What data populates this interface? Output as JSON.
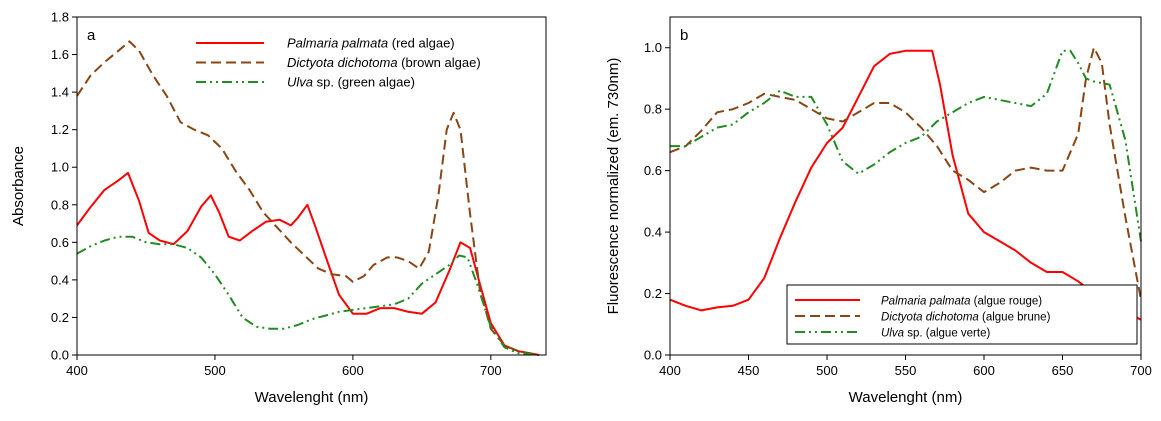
{
  "chart_data": [
    {
      "type": "line",
      "panel_label": "a",
      "xlabel": "Wavelenght (nm)",
      "ylabel": "Absorbance",
      "xlim": [
        400,
        740
      ],
      "ylim": [
        0,
        1.8
      ],
      "xticks": [
        400,
        500,
        600,
        700
      ],
      "yticks": [
        "0.0",
        "0.2",
        "0.4",
        "0.6",
        "0.8",
        "1.0",
        "1.2",
        "1.4",
        "1.6",
        "1.8"
      ],
      "grid": false,
      "legend_position": "top-right",
      "series": [
        {
          "name": "Palmaria palmata",
          "name_suffix": " (red algae)",
          "color": "#ff0000",
          "dash": "solid",
          "points": [
            [
              400,
              0.69
            ],
            [
              410,
              0.79
            ],
            [
              420,
              0.88
            ],
            [
              430,
              0.93
            ],
            [
              437,
              0.97
            ],
            [
              445,
              0.82
            ],
            [
              452,
              0.65
            ],
            [
              460,
              0.61
            ],
            [
              470,
              0.59
            ],
            [
              480,
              0.66
            ],
            [
              490,
              0.79
            ],
            [
              497,
              0.85
            ],
            [
              503,
              0.76
            ],
            [
              510,
              0.63
            ],
            [
              518,
              0.61
            ],
            [
              527,
              0.66
            ],
            [
              537,
              0.71
            ],
            [
              547,
              0.72
            ],
            [
              555,
              0.69
            ],
            [
              560,
              0.73
            ],
            [
              567,
              0.8
            ],
            [
              573,
              0.68
            ],
            [
              580,
              0.53
            ],
            [
              590,
              0.32
            ],
            [
              600,
              0.22
            ],
            [
              610,
              0.22
            ],
            [
              620,
              0.25
            ],
            [
              630,
              0.25
            ],
            [
              640,
              0.23
            ],
            [
              650,
              0.22
            ],
            [
              660,
              0.28
            ],
            [
              670,
              0.45
            ],
            [
              678,
              0.6
            ],
            [
              685,
              0.57
            ],
            [
              692,
              0.38
            ],
            [
              700,
              0.17
            ],
            [
              710,
              0.05
            ],
            [
              720,
              0.02
            ],
            [
              735,
              0.0
            ]
          ]
        },
        {
          "name": "Dictyota dichotoma",
          "name_suffix": " (brown algae)",
          "color": "#8b4513",
          "dash": "long-dash",
          "points": [
            [
              400,
              1.38
            ],
            [
              410,
              1.49
            ],
            [
              420,
              1.56
            ],
            [
              430,
              1.62
            ],
            [
              438,
              1.67
            ],
            [
              445,
              1.62
            ],
            [
              455,
              1.49
            ],
            [
              465,
              1.38
            ],
            [
              475,
              1.24
            ],
            [
              485,
              1.2
            ],
            [
              495,
              1.17
            ],
            [
              505,
              1.1
            ],
            [
              515,
              0.98
            ],
            [
              525,
              0.88
            ],
            [
              535,
              0.76
            ],
            [
              545,
              0.68
            ],
            [
              555,
              0.6
            ],
            [
              565,
              0.53
            ],
            [
              575,
              0.46
            ],
            [
              585,
              0.43
            ],
            [
              595,
              0.42
            ],
            [
              600,
              0.39
            ],
            [
              608,
              0.42
            ],
            [
              615,
              0.48
            ],
            [
              625,
              0.52
            ],
            [
              632,
              0.52
            ],
            [
              640,
              0.5
            ],
            [
              648,
              0.46
            ],
            [
              655,
              0.55
            ],
            [
              662,
              0.85
            ],
            [
              668,
              1.2
            ],
            [
              673,
              1.29
            ],
            [
              678,
              1.2
            ],
            [
              685,
              0.75
            ],
            [
              692,
              0.35
            ],
            [
              700,
              0.14
            ],
            [
              710,
              0.05
            ],
            [
              720,
              0.02
            ],
            [
              735,
              0.0
            ]
          ]
        },
        {
          "name": "Ulva",
          "name_suffix": " sp. (green algae)",
          "color": "#228b22",
          "dash": "dash-dot-dot",
          "points": [
            [
              400,
              0.54
            ],
            [
              410,
              0.58
            ],
            [
              420,
              0.61
            ],
            [
              430,
              0.63
            ],
            [
              440,
              0.63
            ],
            [
              450,
              0.6
            ],
            [
              460,
              0.59
            ],
            [
              470,
              0.59
            ],
            [
              480,
              0.57
            ],
            [
              490,
              0.52
            ],
            [
              500,
              0.43
            ],
            [
              510,
              0.32
            ],
            [
              520,
              0.2
            ],
            [
              530,
              0.15
            ],
            [
              540,
              0.14
            ],
            [
              550,
              0.14
            ],
            [
              560,
              0.16
            ],
            [
              570,
              0.19
            ],
            [
              580,
              0.21
            ],
            [
              590,
              0.23
            ],
            [
              600,
              0.24
            ],
            [
              610,
              0.25
            ],
            [
              620,
              0.26
            ],
            [
              630,
              0.27
            ],
            [
              640,
              0.3
            ],
            [
              650,
              0.38
            ],
            [
              660,
              0.43
            ],
            [
              670,
              0.48
            ],
            [
              677,
              0.53
            ],
            [
              683,
              0.52
            ],
            [
              690,
              0.38
            ],
            [
              700,
              0.15
            ],
            [
              710,
              0.04
            ],
            [
              720,
              0.01
            ],
            [
              735,
              0.0
            ]
          ]
        }
      ]
    },
    {
      "type": "line",
      "panel_label": "b",
      "xlabel": "Wavelenght (nm)",
      "ylabel": "Fluorescence normalized (em. 730nm)",
      "xlim": [
        400,
        700
      ],
      "ylim": [
        0,
        1.1
      ],
      "xticks": [
        400,
        450,
        500,
        550,
        600,
        650,
        700
      ],
      "yticks": [
        "0.0",
        "0.2",
        "0.4",
        "0.6",
        "0.8",
        "1.0"
      ],
      "grid": false,
      "legend_position": "bottom-right",
      "series": [
        {
          "name": "Palmaria palmata",
          "name_suffix": " (algue rouge)",
          "color": "#ff0000",
          "dash": "solid",
          "points": [
            [
              400,
              0.18
            ],
            [
              410,
              0.16
            ],
            [
              420,
              0.145
            ],
            [
              430,
              0.155
            ],
            [
              440,
              0.16
            ],
            [
              450,
              0.18
            ],
            [
              460,
              0.25
            ],
            [
              470,
              0.38
            ],
            [
              480,
              0.5
            ],
            [
              490,
              0.61
            ],
            [
              500,
              0.69
            ],
            [
              510,
              0.74
            ],
            [
              520,
              0.84
            ],
            [
              530,
              0.94
            ],
            [
              540,
              0.98
            ],
            [
              550,
              0.99
            ],
            [
              560,
              0.99
            ],
            [
              567,
              0.99
            ],
            [
              572,
              0.88
            ],
            [
              580,
              0.65
            ],
            [
              590,
              0.46
            ],
            [
              600,
              0.4
            ],
            [
              610,
              0.37
            ],
            [
              620,
              0.34
            ],
            [
              630,
              0.3
            ],
            [
              640,
              0.27
            ],
            [
              650,
              0.27
            ],
            [
              660,
              0.24
            ],
            [
              670,
              0.2
            ],
            [
              680,
              0.17
            ],
            [
              690,
              0.14
            ],
            [
              700,
              0.115
            ]
          ]
        },
        {
          "name": "Dictyota dichotoma",
          "name_suffix": " (algue brune)",
          "color": "#8b4513",
          "dash": "long-dash",
          "points": [
            [
              400,
              0.66
            ],
            [
              410,
              0.68
            ],
            [
              420,
              0.73
            ],
            [
              430,
              0.79
            ],
            [
              440,
              0.8
            ],
            [
              450,
              0.82
            ],
            [
              460,
              0.85
            ],
            [
              470,
              0.84
            ],
            [
              480,
              0.83
            ],
            [
              490,
              0.8
            ],
            [
              500,
              0.77
            ],
            [
              510,
              0.76
            ],
            [
              520,
              0.79
            ],
            [
              530,
              0.82
            ],
            [
              540,
              0.82
            ],
            [
              550,
              0.79
            ],
            [
              560,
              0.74
            ],
            [
              570,
              0.68
            ],
            [
              580,
              0.6
            ],
            [
              590,
              0.57
            ],
            [
              600,
              0.53
            ],
            [
              610,
              0.56
            ],
            [
              620,
              0.6
            ],
            [
              630,
              0.61
            ],
            [
              640,
              0.6
            ],
            [
              650,
              0.6
            ],
            [
              660,
              0.72
            ],
            [
              665,
              0.9
            ],
            [
              670,
              1.0
            ],
            [
              675,
              0.95
            ],
            [
              680,
              0.75
            ],
            [
              690,
              0.45
            ],
            [
              700,
              0.18
            ]
          ]
        },
        {
          "name": "Ulva",
          "name_suffix": " sp. (algue verte)",
          "color": "#228b22",
          "dash": "dash-dot-dot",
          "points": [
            [
              400,
              0.68
            ],
            [
              410,
              0.68
            ],
            [
              420,
              0.71
            ],
            [
              430,
              0.74
            ],
            [
              440,
              0.75
            ],
            [
              450,
              0.79
            ],
            [
              460,
              0.82
            ],
            [
              470,
              0.86
            ],
            [
              480,
              0.84
            ],
            [
              490,
              0.84
            ],
            [
              500,
              0.75
            ],
            [
              510,
              0.63
            ],
            [
              520,
              0.59
            ],
            [
              530,
              0.62
            ],
            [
              540,
              0.66
            ],
            [
              550,
              0.69
            ],
            [
              560,
              0.71
            ],
            [
              570,
              0.76
            ],
            [
              580,
              0.79
            ],
            [
              590,
              0.82
            ],
            [
              600,
              0.84
            ],
            [
              610,
              0.83
            ],
            [
              620,
              0.82
            ],
            [
              630,
              0.81
            ],
            [
              640,
              0.85
            ],
            [
              650,
              0.99
            ],
            [
              655,
              0.99
            ],
            [
              660,
              0.95
            ],
            [
              665,
              0.9
            ],
            [
              670,
              0.89
            ],
            [
              680,
              0.88
            ],
            [
              690,
              0.7
            ],
            [
              700,
              0.37
            ]
          ]
        }
      ]
    }
  ]
}
